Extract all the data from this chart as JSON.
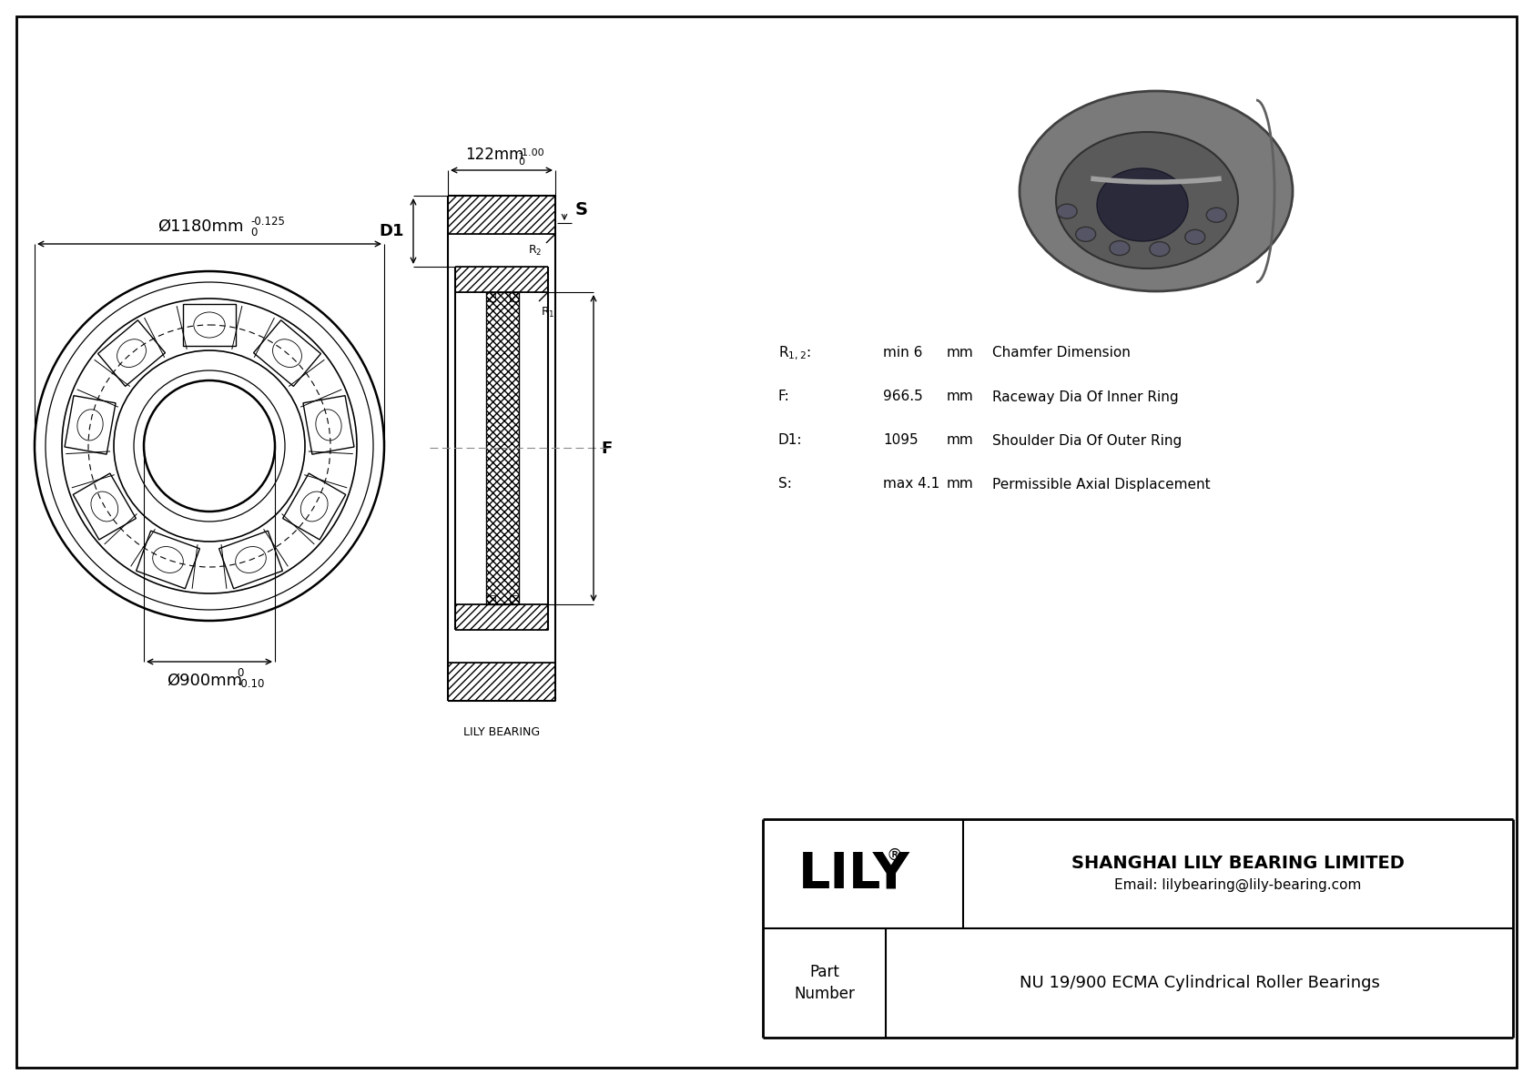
{
  "bg_color": "#ffffff",
  "border_color": "#000000",
  "line_color": "#000000",
  "title_company": "SHANGHAI LILY BEARING LIMITED",
  "title_email": "Email: lilybearing@lily-bearing.com",
  "part_label": "Part\nNumber",
  "part_number": "NU 19/900 ECMA Cylindrical Roller Bearings",
  "lily_text": "LILY",
  "specs": [
    {
      "symbol": "R$_{1,2}$:",
      "value": "min 6",
      "unit": "mm",
      "desc": "Chamfer Dimension"
    },
    {
      "symbol": "F:",
      "value": "966.5",
      "unit": "mm",
      "desc": "Raceway Dia Of Inner Ring"
    },
    {
      "symbol": "D1:",
      "value": "1095",
      "unit": "mm",
      "desc": "Shoulder Dia Of Outer Ring"
    },
    {
      "symbol": "S:",
      "value": "max 4.1",
      "unit": "mm",
      "desc": "Permissible Axial Displacement"
    }
  ],
  "dim_outer": "Ø1180mm",
  "dim_outer_tol_top": "0",
  "dim_outer_tol_bot": "-0.125",
  "dim_inner": "Ø900mm",
  "dim_inner_tol_top": "0",
  "dim_inner_tol_bot": "-0.10",
  "dim_width": "122mm",
  "dim_width_tol_top": "0",
  "dim_width_tol_bot": "-1.00",
  "label_D1": "D1",
  "label_F": "F",
  "label_S": "S",
  "label_R1": "R$_1$",
  "label_R2": "R$_2$"
}
